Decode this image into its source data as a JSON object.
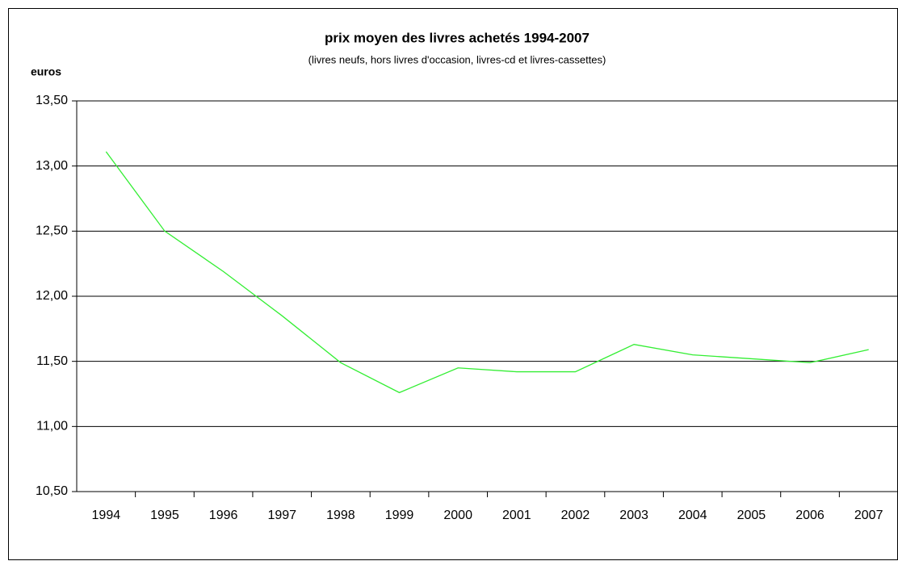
{
  "chart_data": {
    "type": "line",
    "title": "prix moyen des livres achetés 1994-2007",
    "subtitle": "(livres neufs, hors livres d'occasion, livres-cd et livres-cassettes)",
    "y_label": "euros",
    "categories": [
      "1994",
      "1995",
      "1996",
      "1997",
      "1998",
      "1999",
      "2000",
      "2001",
      "2002",
      "2003",
      "2004",
      "2005",
      "2006",
      "2007"
    ],
    "series": [
      {
        "name": "prix moyen",
        "color": "#33ee33",
        "values": [
          13.11,
          12.5,
          12.19,
          11.85,
          11.49,
          11.26,
          11.45,
          11.42,
          11.42,
          11.63,
          11.55,
          11.52,
          11.49,
          11.59
        ]
      }
    ],
    "ylim": [
      10.5,
      13.5
    ],
    "yticks": [
      {
        "value": 10.5,
        "label": "10,50"
      },
      {
        "value": 11,
        "label": "11,00"
      },
      {
        "value": 11.5,
        "label": "11,50"
      },
      {
        "value": 12,
        "label": "12,00"
      },
      {
        "value": 12.5,
        "label": "12,50"
      },
      {
        "value": 13,
        "label": "13,00"
      },
      {
        "value": 13.5,
        "label": "13,50"
      }
    ],
    "grid": true
  }
}
